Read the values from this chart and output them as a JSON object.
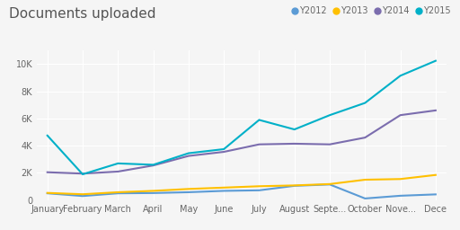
{
  "title": "Documents uploaded",
  "months": [
    "January",
    "February",
    "March",
    "April",
    "May",
    "June",
    "July",
    "August",
    "Septe...",
    "October",
    "Nove...",
    "Dece"
  ],
  "series": {
    "Y2012": {
      "values": [
        500,
        300,
        500,
        520,
        580,
        680,
        720,
        1050,
        1150,
        120,
        320,
        420
      ],
      "color": "#5B9BD5"
    },
    "Y2013": {
      "values": [
        530,
        430,
        580,
        680,
        820,
        920,
        1020,
        1080,
        1180,
        1500,
        1550,
        1850
      ],
      "color": "#FFC000"
    },
    "Y2014": {
      "values": [
        2050,
        1950,
        2100,
        2550,
        3250,
        3550,
        4100,
        4150,
        4100,
        4600,
        6250,
        6600
      ],
      "color": "#7B6DAE"
    },
    "Y2015": {
      "values": [
        4750,
        1900,
        2700,
        2600,
        3450,
        3750,
        5900,
        5200,
        6250,
        7150,
        9150,
        10250
      ],
      "color": "#00B0C8"
    }
  },
  "ylim": [
    0,
    11000
  ],
  "yticks": [
    0,
    2000,
    4000,
    6000,
    8000,
    10000
  ],
  "ytick_labels": [
    "0",
    "2K",
    "4K",
    "6K",
    "8K",
    "10K"
  ],
  "background_color": "#f5f5f5",
  "plot_bg_color": "#f5f5f5",
  "grid_color": "#ffffff",
  "title_fontsize": 11,
  "axis_fontsize": 7,
  "legend_fontsize": 7,
  "legend_order": [
    "Y2012",
    "Y2013",
    "Y2014",
    "Y2015"
  ]
}
